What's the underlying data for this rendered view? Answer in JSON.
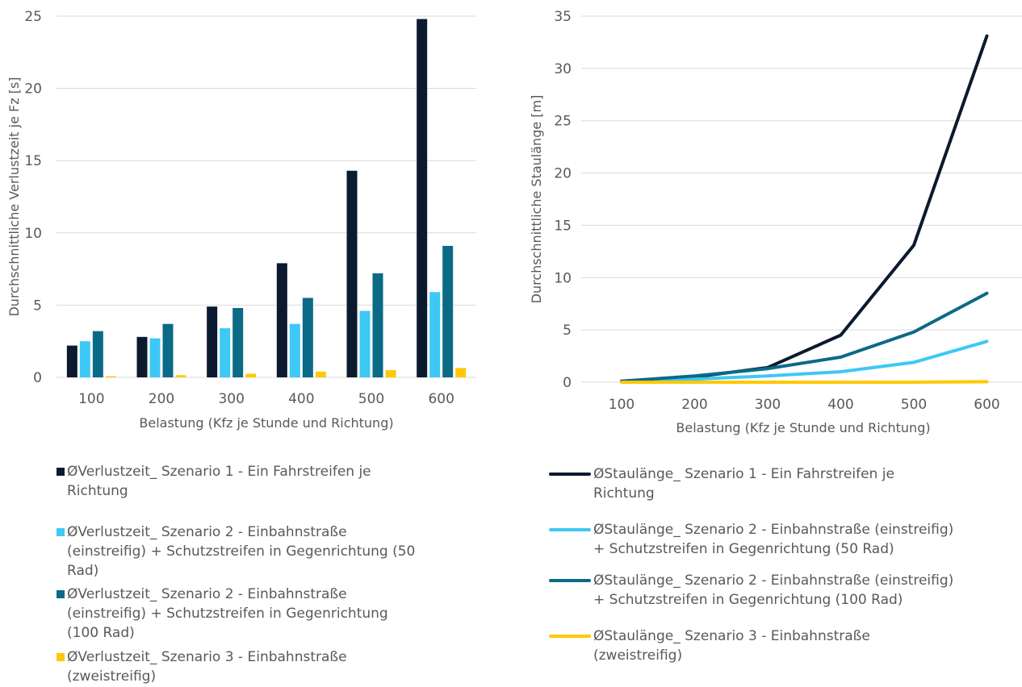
{
  "colors": {
    "dark": "#0B1A2E",
    "light_blue": "#3EC8F5",
    "teal": "#0B6A86",
    "yellow": "#FFC800",
    "grid": "#D9D9D9",
    "text": "#595959"
  },
  "chart_data": [
    {
      "type": "bar",
      "categories": [
        "100",
        "200",
        "300",
        "400",
        "500",
        "600"
      ],
      "xlabel": "Belastung (Kfz je Stunde und Richtung)",
      "ylabel": "Durchschnittliche Verlustzeit je Fz [s]",
      "ylim": [
        0,
        25
      ],
      "yticks": [
        "0",
        "5",
        "10",
        "15",
        "20",
        "25"
      ],
      "grid": true,
      "legend_position": "bottom",
      "series": [
        {
          "name": "ØVerlustzeit_ Szenario 1 - Ein Fahrstreifen je Richtung",
          "color": "#0B1A2E",
          "values": [
            2.2,
            2.8,
            4.9,
            7.9,
            14.3,
            24.8
          ]
        },
        {
          "name": "ØVerlustzeit_ Szenario 2 - Einbahnstraße (einstreifig) + Schutzstreifen in Gegenrichtung (50 Rad)",
          "color": "#3EC8F5",
          "values": [
            2.5,
            2.7,
            3.4,
            3.7,
            4.6,
            5.9
          ]
        },
        {
          "name": "ØVerlustzeit_ Szenario 2 - Einbahnstraße (einstreifig) + Schutzstreifen in Gegenrichtung (100 Rad)",
          "color": "#0B6A86",
          "values": [
            3.2,
            3.7,
            4.8,
            5.5,
            7.2,
            9.1
          ]
        },
        {
          "name": "ØVerlustzeit_ Szenario 3 - Einbahnstraße (zweistreifig)",
          "color": "#FFC800",
          "values": [
            0.08,
            0.15,
            0.25,
            0.4,
            0.5,
            0.65
          ]
        }
      ]
    },
    {
      "type": "line",
      "x": [
        "100",
        "200",
        "300",
        "400",
        "500",
        "600"
      ],
      "xlabel": "Belastung (Kfz je Stunde und Richtung)",
      "ylabel": "Durchschnittliche Staulänge [m]",
      "ylim": [
        0,
        35
      ],
      "yticks": [
        "0",
        "5",
        "10",
        "15",
        "20",
        "25",
        "30",
        "35"
      ],
      "grid": true,
      "legend_position": "bottom",
      "series": [
        {
          "name": "ØStaulänge_ Szenario 1 - Ein Fahrstreifen je Richtung",
          "color": "#0B1A2E",
          "values": [
            0.1,
            0.5,
            1.4,
            4.5,
            13.1,
            33.1
          ]
        },
        {
          "name": "ØStaulänge_ Szenario 2 - Einbahnstraße (einstreifig) + Schutzstreifen in Gegenrichtung (50 Rad)",
          "color": "#3EC8F5",
          "values": [
            0.1,
            0.3,
            0.6,
            1.0,
            1.9,
            3.9
          ]
        },
        {
          "name": "ØStaulänge_ Szenario 2 - Einbahnstraße (einstreifig) + Schutzstreifen in Gegenrichtung (100 Rad)",
          "color": "#0B6A86",
          "values": [
            0.1,
            0.6,
            1.3,
            2.4,
            4.8,
            8.5
          ]
        },
        {
          "name": "ØStaulänge_ Szenario 3 - Einbahnstraße (zweistreifig)",
          "color": "#FFC800",
          "values": [
            0.0,
            0.0,
            0.0,
            0.0,
            0.0,
            0.05
          ]
        }
      ]
    }
  ],
  "legend_left": [
    {
      "lines": [
        "ØVerlustzeit_ Szenario 1 - Ein Fahrstreifen je",
        "Richtung"
      ]
    },
    {
      "lines": [
        "ØVerlustzeit_ Szenario 2 - Einbahnstraße",
        "(einstreifig) + Schutzstreifen in Gegenrichtung (50",
        "Rad)"
      ]
    },
    {
      "lines": [
        "ØVerlustzeit_ Szenario 2 - Einbahnstraße",
        "(einstreifig) + Schutzstreifen in Gegenrichtung",
        "(100 Rad)"
      ]
    },
    {
      "lines": [
        "ØVerlustzeit_ Szenario 3 - Einbahnstraße",
        "(zweistreifig)"
      ]
    }
  ],
  "legend_right": [
    {
      "lines": [
        "ØStaulänge_ Szenario 1 - Ein Fahrstreifen je",
        "Richtung"
      ]
    },
    {
      "lines": [
        "ØStaulänge_ Szenario 2 - Einbahnstraße (einstreifig)",
        "+ Schutzstreifen in Gegenrichtung (50 Rad)"
      ]
    },
    {
      "lines": [
        "ØStaulänge_ Szenario 2 - Einbahnstraße (einstreifig)",
        "+ Schutzstreifen in Gegenrichtung (100 Rad)"
      ]
    },
    {
      "lines": [
        "ØStaulänge_ Szenario 3 - Einbahnstraße",
        "(zweistreifig)"
      ]
    }
  ]
}
